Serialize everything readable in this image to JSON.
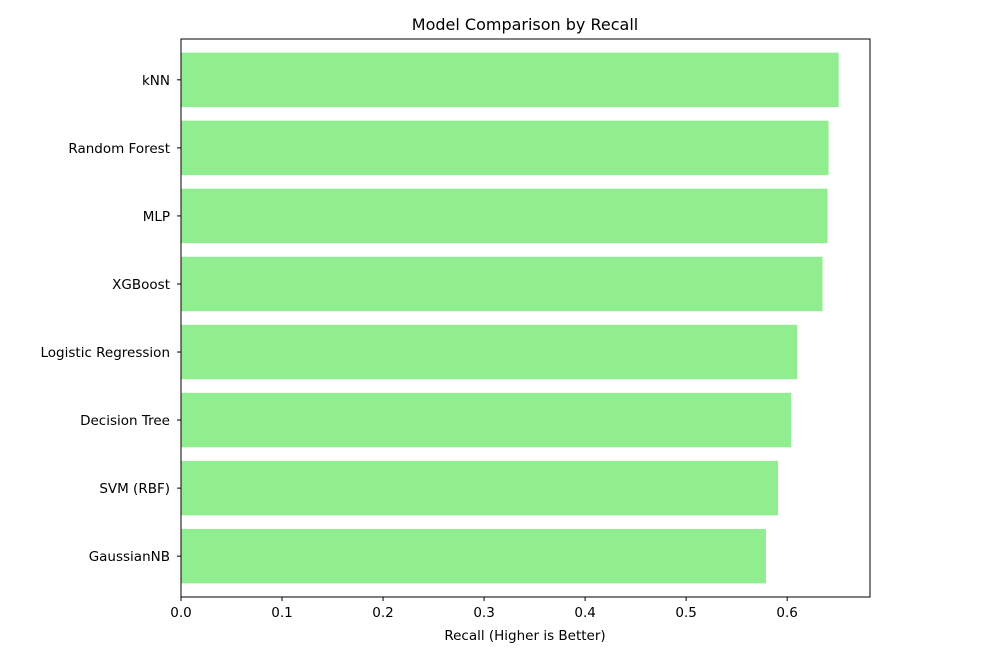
{
  "chart_data": {
    "type": "bar",
    "orientation": "horizontal",
    "title": "Model Comparison by Recall",
    "xlabel": "Recall (Higher is Better)",
    "ylabel": "",
    "categories": [
      "kNN",
      "Random Forest",
      "MLP",
      "XGBoost",
      "Logistic Regression",
      "Decision Tree",
      "SVM (RBF)",
      "GaussianNB"
    ],
    "values": [
      0.651,
      0.641,
      0.64,
      0.635,
      0.61,
      0.604,
      0.591,
      0.579
    ],
    "xlim": [
      0,
      0.682
    ],
    "xticks": [
      "0.0",
      "0.1",
      "0.2",
      "0.3",
      "0.4",
      "0.5",
      "0.6"
    ],
    "xtick_values": [
      0,
      0.1,
      0.2,
      0.3,
      0.4,
      0.5,
      0.6
    ],
    "bar_color": "#90ee90",
    "grid": false,
    "legend": "none"
  }
}
